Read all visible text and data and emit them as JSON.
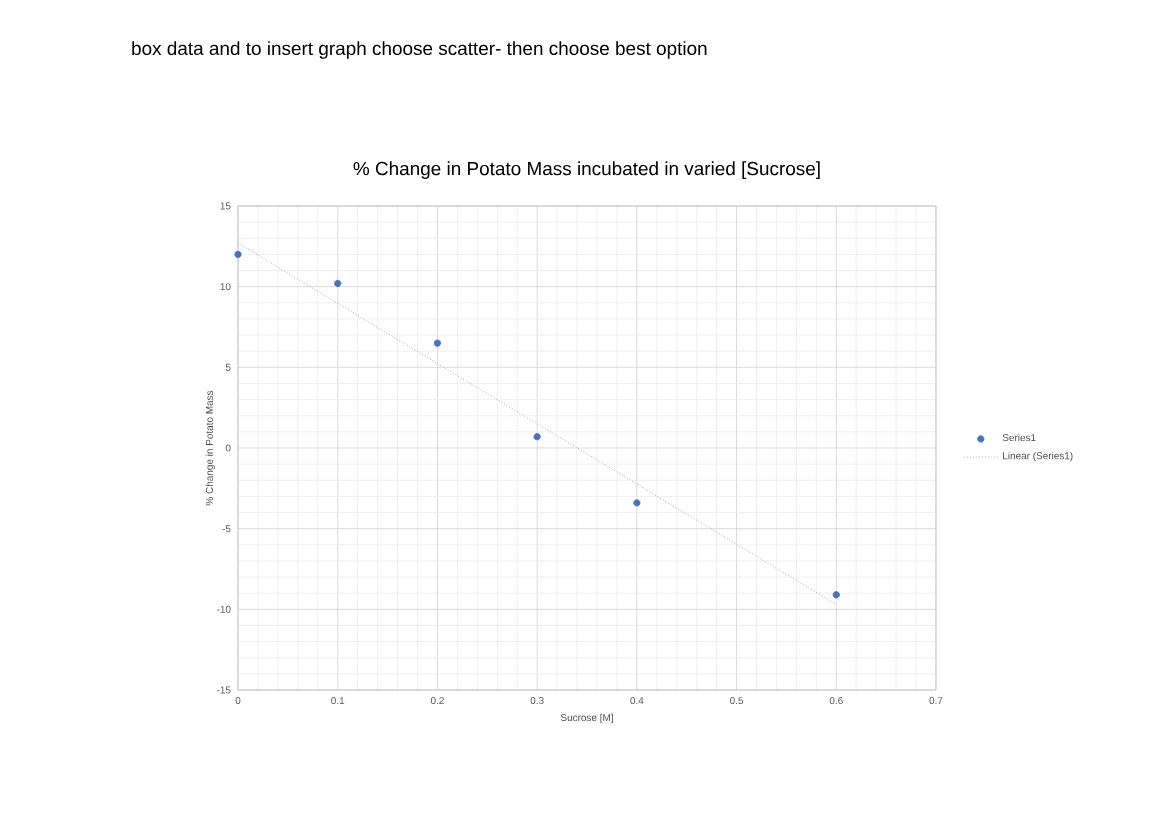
{
  "chart_data": {
    "type": "scatter",
    "title": "% Change in Potato Mass incubated in varied [Sucrose]",
    "xlabel": "Sucrose [M]",
    "ylabel": "% Change in Potato Mass",
    "annotations": [
      "box data and to insert graph choose scatter- then choose best option"
    ],
    "series": [
      {
        "name": "Series1",
        "color": "#4472c4",
        "marker": "circle",
        "x": [
          0,
          0.1,
          0.2,
          0.3,
          0.4,
          0.6
        ],
        "values": [
          12.0,
          10.2,
          6.5,
          0.7,
          -3.4,
          -9.1
        ]
      },
      {
        "name": "Linear (Series1)",
        "type": "line",
        "color": "#8faadc",
        "marker": "none",
        "line_style": "dotted",
        "x": [
          0,
          0.6
        ],
        "values": [
          12.7,
          -9.7
        ]
      }
    ],
    "xlim": [
      0,
      0.7
    ],
    "ylim": [
      -15,
      15
    ],
    "xticks": [
      0,
      0.1,
      0.2,
      0.3,
      0.4,
      0.5,
      0.6,
      0.7
    ],
    "yticks": [
      -15,
      -10,
      -5,
      0,
      5,
      10,
      15
    ],
    "grid": true,
    "legend": "right"
  }
}
